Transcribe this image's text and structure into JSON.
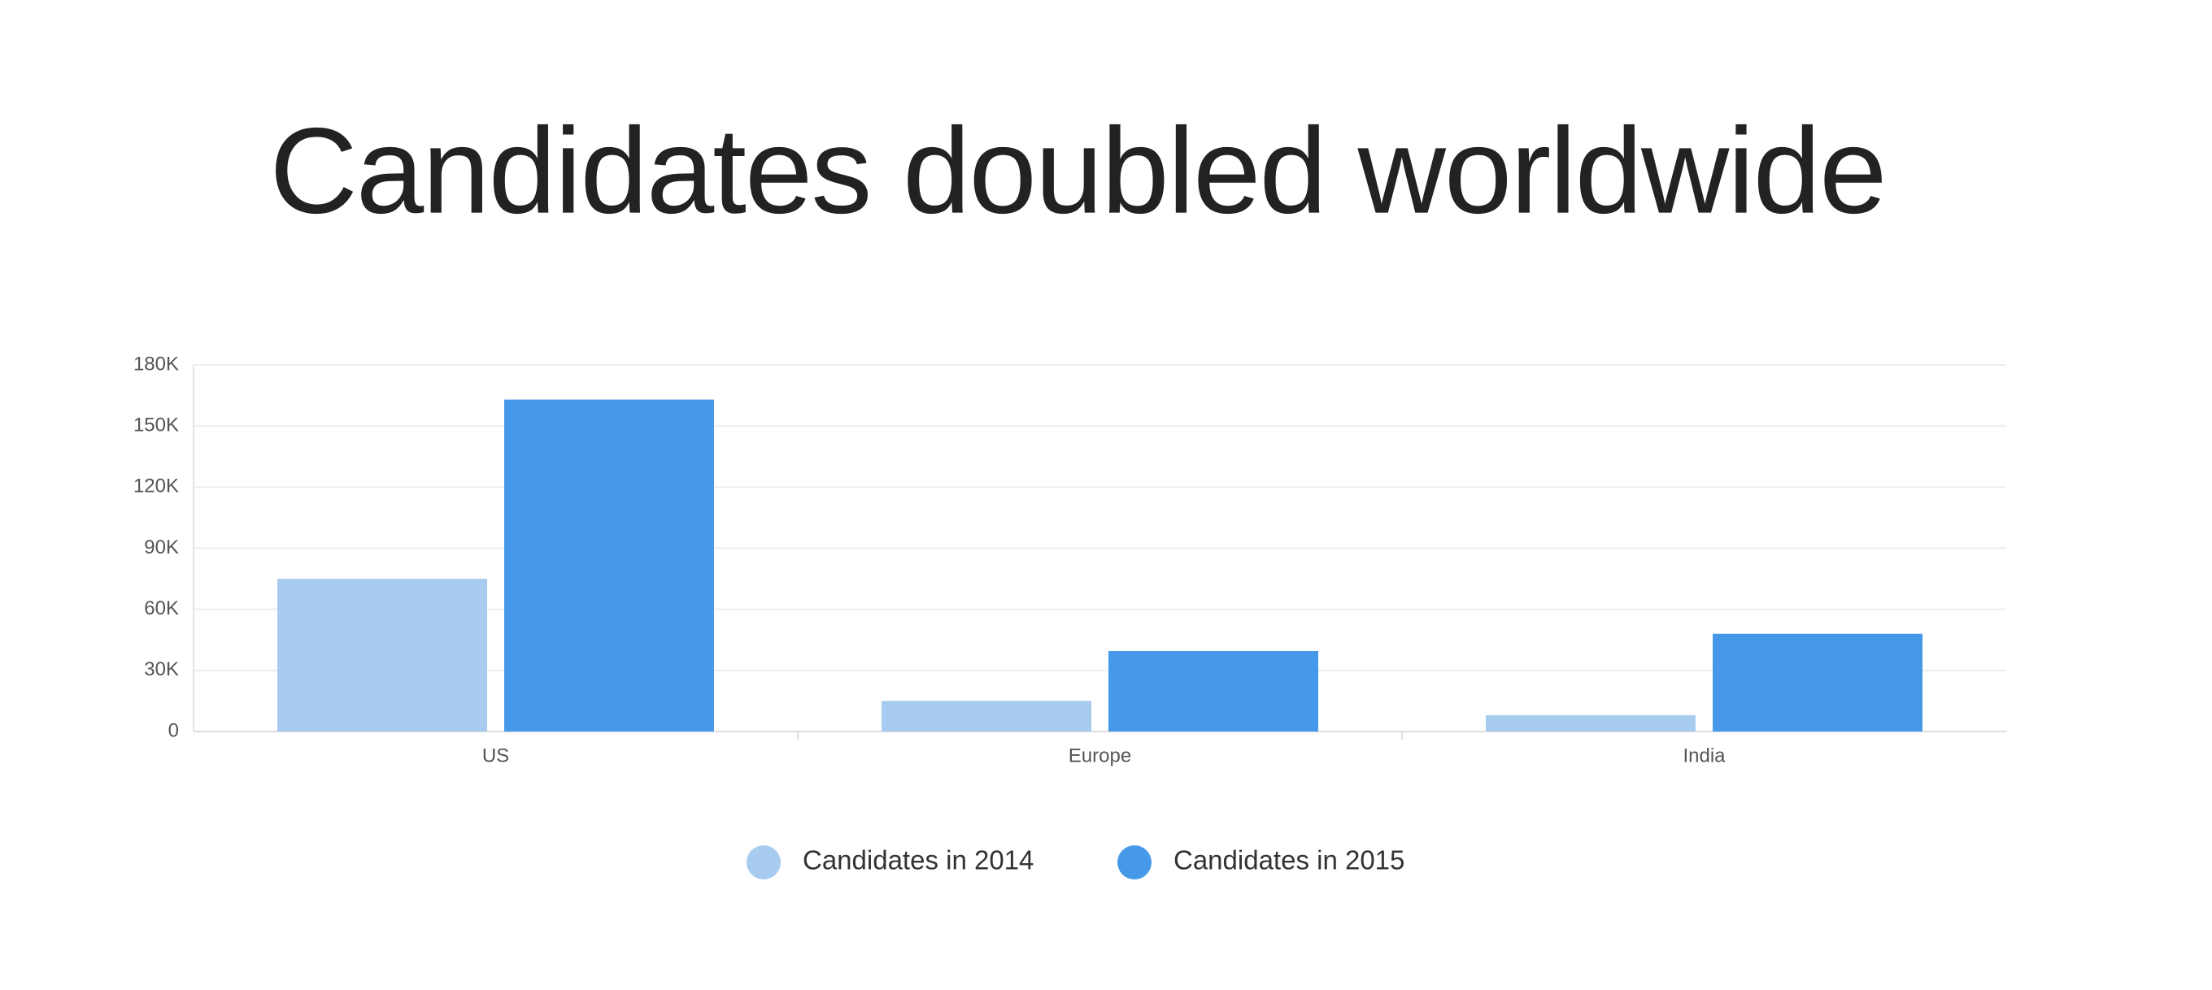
{
  "chart_data": {
    "type": "bar",
    "title": "Candidates doubled worldwide",
    "categories": [
      "US",
      "Europe",
      "India"
    ],
    "series": [
      {
        "name": "Candidates in 2014",
        "color": "#a8cbf0",
        "values": [
          75000,
          15000,
          8000
        ]
      },
      {
        "name": "Candidates in 2015",
        "color": "#4699e8",
        "values": [
          163000,
          39500,
          48000
        ]
      }
    ],
    "ylim": [
      0,
      180000
    ],
    "yticks": [
      0,
      {
        "value": 30000,
        "label": "30K"
      },
      {
        "value": 60000,
        "label": "60K"
      },
      {
        "value": 90000,
        "label": "90K"
      },
      {
        "value": 120000,
        "label": "120K"
      },
      {
        "value": 150000,
        "label": "150K"
      },
      {
        "value": 180000,
        "label": "180K"
      }
    ],
    "grid": true
  }
}
